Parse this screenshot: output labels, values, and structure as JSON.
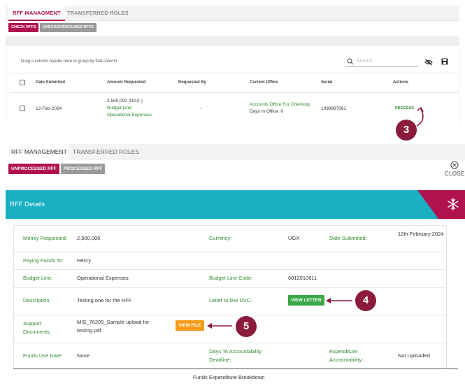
{
  "top_panel": {
    "tabs": [
      {
        "label": "RFF MANAGMENT"
      },
      {
        "label": "TRANSFERRED ROLES"
      }
    ],
    "buttons": {
      "check": "CHECK RFFS",
      "checked_declined": "CHECKED/DECLINED RFFS"
    },
    "group_hint": "Drag a column header here to group by that column",
    "search": {
      "placeholder": "Search..."
    },
    "columns": [
      "Date Submited",
      "Amount Requested",
      "Requested By",
      "Current Office",
      "Serial",
      "Actions"
    ],
    "row": {
      "date": "12-Feb-2024",
      "amount": "2,500,000 (UGX )",
      "budget_line_label": "Budget Line:",
      "budget_line_value": "Operational Expenses",
      "requested_by": "-",
      "office": "Accounts Office For Checking",
      "days_in_office": "Days In Office: 0",
      "serial": "1090897081",
      "action": "PROCESS"
    }
  },
  "callouts": {
    "three": "3",
    "four": "4",
    "five": "5"
  },
  "second_panel": {
    "tabs": [
      {
        "label": "RFF MANAGEMENT"
      },
      {
        "label": "TRANSFERRED ROLES"
      }
    ],
    "buttons": {
      "unprocessed": "UNPROCESSED RFF",
      "processed": "PROCESSED RFF"
    },
    "close_label": "CLOSE",
    "details_title": "RFF Details",
    "details": {
      "money_requested_label": "Money Requested:",
      "money_requested": "2,500,000",
      "currency_label": "Currency:",
      "currency": "UGX",
      "date_submitted_label": "Date Submitted:",
      "date_submitted": "12th February 2024",
      "paying_funds_label": "Paying Funds To:",
      "paying_funds": "Henry",
      "budget_line_label": "Budget Line:",
      "budget_line": "Operational Expenses",
      "budget_code_label": "Budget Line Code:",
      "budget_code": "6012010611",
      "description_label": "Description:",
      "description": "Testing one for the RFF",
      "letter_label": "Letter to line DVC:",
      "view_letter": "VIEW LETTER",
      "support_docs_label": "Support Documents:",
      "support_docs": "MIS_76205_Sample upload for testing.pdf",
      "view_file": "VIEW FILE",
      "funds_use_date_label": "Funds Use Date:",
      "funds_use_date": "None",
      "days_accountability_label": "Days To Accountability Deadline:",
      "expenditure_label": "Expenditure Accountability:",
      "expenditure": "Not Uploaded"
    },
    "footer_title": "Funds Expenditure Breakdown"
  },
  "colors": {
    "crimson": "#b0124e",
    "teal": "#1ab0c3",
    "badge": "#8b1b3c",
    "green_label": "#2f8a2f",
    "view_letter_btn": "#3aa84a",
    "view_file_btn": "#f59a1a",
    "grey_btn": "#9a9a9a"
  }
}
